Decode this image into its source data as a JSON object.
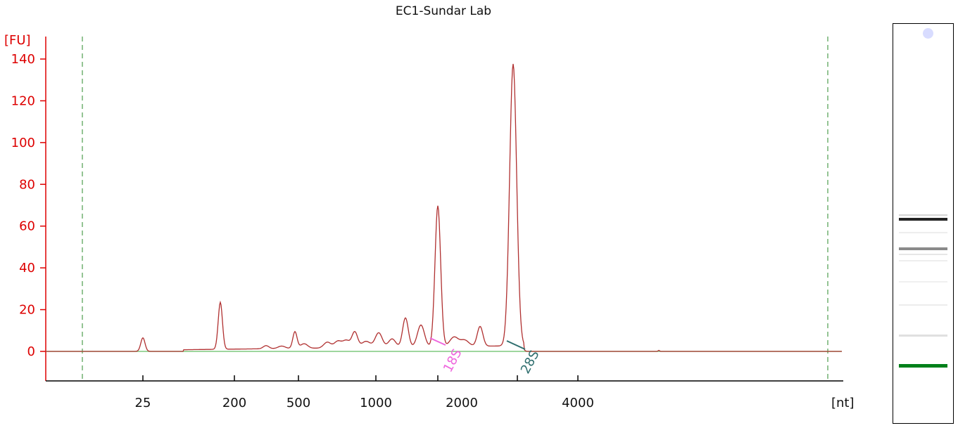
{
  "chart_data": {
    "type": "line",
    "title": "EC1-Sundar Lab",
    "ylabel": "[FU]",
    "xlabel": "[nt]",
    "ylim": [
      -14,
      150
    ],
    "yticks": [
      0,
      20,
      40,
      60,
      80,
      100,
      120,
      140
    ],
    "x_tick_labels": [
      "25",
      "200",
      "500",
      "1000",
      "2000",
      "4000"
    ],
    "peak_labels": [
      "18S",
      "28S"
    ],
    "baseline_fu": 0,
    "grid": false,
    "series": [
      {
        "color": "#b03030",
        "peaks": [
          {
            "size": "25",
            "fu": 6.5
          },
          {
            "size": "~150",
            "fu": 22.5
          },
          {
            "size": "~500",
            "fu": 8
          },
          {
            "size": "~800",
            "fu": 7.5
          },
          {
            "size": "~1000",
            "fu": 7
          },
          {
            "size": "~1300",
            "fu": 14
          },
          {
            "size": "~1500",
            "fu": 10.5
          },
          {
            "size": "18S",
            "fu": 67.5
          },
          {
            "size": "~2300",
            "fu": 9.5
          },
          {
            "size": "28S",
            "fu": 135
          }
        ]
      }
    ]
  },
  "gel": {
    "band_colors": [
      "#222222",
      "#888888",
      "#00801a"
    ],
    "dot_color": "#d8dcff"
  }
}
